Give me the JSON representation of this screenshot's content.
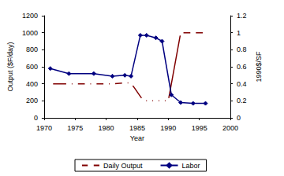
{
  "chart_data": {
    "type": "line",
    "xlabel": "Year",
    "ylabel": "Output ($F/day)",
    "y2label": "1990$/SF",
    "xlim": [
      1970,
      2000
    ],
    "xticks": [
      1970,
      1975,
      1980,
      1985,
      1990,
      1995,
      2000
    ],
    "ylim": [
      0,
      1200
    ],
    "yticks": [
      0,
      200,
      400,
      600,
      800,
      1000,
      1200
    ],
    "y2lim": [
      0,
      1.2
    ],
    "y2ticks": [
      0,
      0.2,
      0.4,
      0.6,
      0.8,
      1,
      1.2
    ],
    "grid": false,
    "legend": "bottom",
    "series": [
      {
        "name": "Daily Output",
        "color": "#800000",
        "marker": "open-square",
        "x": [
          1971,
          1974,
          1975,
          1977,
          1978,
          1980,
          1981,
          1983,
          1984,
          1986,
          1987,
          1988,
          1989,
          1990,
          1992,
          1994,
          1996
        ],
        "values": [
          400,
          400,
          400,
          400,
          400,
          400,
          400,
          410,
          410,
          200,
          200,
          200,
          200,
          200,
          1000,
          1000,
          1000
        ]
      },
      {
        "name": "Labor",
        "color": "#000080",
        "marker": "diamond",
        "axis": "y2",
        "x": [
          1971,
          1974,
          1978,
          1981,
          1983,
          1984,
          1985.5,
          1986.5,
          1988,
          1989,
          1990.5,
          1992,
          1994,
          1996
        ],
        "values": [
          0.58,
          0.52,
          0.52,
          0.49,
          0.5,
          0.49,
          0.97,
          0.97,
          0.94,
          0.9,
          0.27,
          0.18,
          0.17,
          0.17
        ]
      }
    ]
  }
}
